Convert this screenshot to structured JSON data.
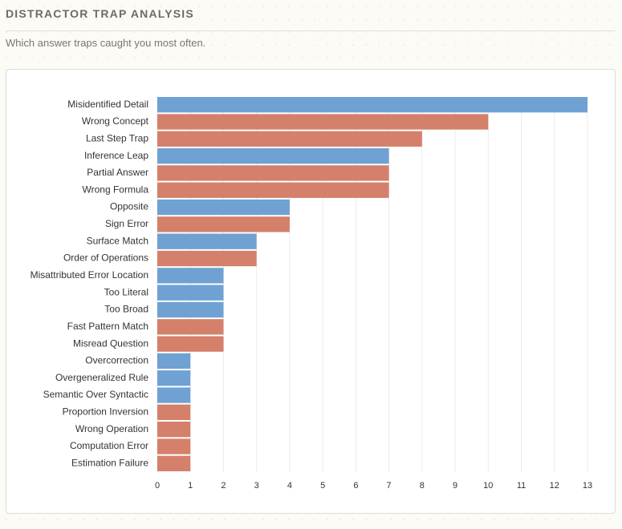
{
  "header": {
    "title": "DISTRACTOR TRAP ANALYSIS",
    "subtitle": "Which answer traps caught you most often."
  },
  "chart_data": {
    "type": "barh",
    "categories": [
      "Misidentified Detail",
      "Wrong Concept",
      "Last Step Trap",
      "Inference Leap",
      "Partial Answer",
      "Wrong Formula",
      "Opposite",
      "Sign Error",
      "Surface Match",
      "Order of Operations",
      "Misattributed Error Location",
      "Too Literal",
      "Too Broad",
      "Fast Pattern Match",
      "Misread Question",
      "Overcorrection",
      "Overgeneralized Rule",
      "Semantic Over Syntactic",
      "Proportion Inversion",
      "Wrong Operation",
      "Computation Error",
      "Estimation Failure"
    ],
    "values": [
      13,
      10,
      8,
      7,
      7,
      7,
      4,
      4,
      3,
      3,
      2,
      2,
      2,
      2,
      2,
      1,
      1,
      1,
      1,
      1,
      1,
      1
    ],
    "colors": [
      "#6fa1d3",
      "#d4806a",
      "#d4806a",
      "#6fa1d3",
      "#d4806a",
      "#d4806a",
      "#6fa1d3",
      "#d4806a",
      "#6fa1d3",
      "#d4806a",
      "#6fa1d3",
      "#6fa1d3",
      "#6fa1d3",
      "#d4806a",
      "#d4806a",
      "#6fa1d3",
      "#6fa1d3",
      "#6fa1d3",
      "#d4806a",
      "#d4806a",
      "#d4806a",
      "#d4806a"
    ],
    "xlim": [
      0,
      13
    ],
    "xticks": [
      0,
      1,
      2,
      3,
      4,
      5,
      6,
      7,
      8,
      9,
      10,
      11,
      12,
      13
    ],
    "grid": true
  }
}
